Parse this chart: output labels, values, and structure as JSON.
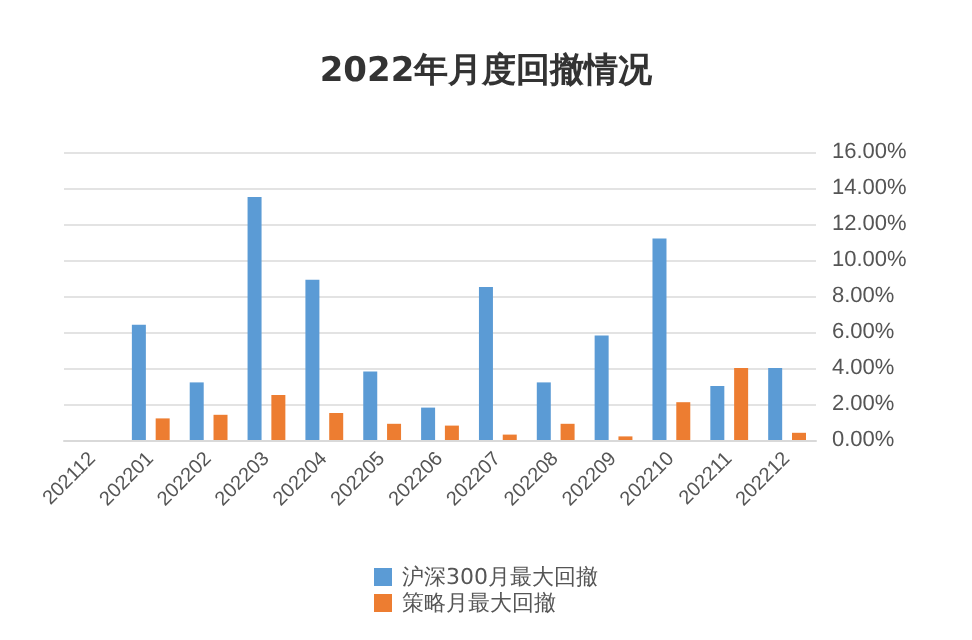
{
  "chart_data": {
    "type": "bar",
    "title": "2022年月度回撤情况",
    "categories": [
      "202112",
      "202201",
      "202202",
      "202203",
      "202204",
      "202205",
      "202206",
      "202207",
      "202208",
      "202209",
      "202210",
      "202211",
      "202212"
    ],
    "series": [
      {
        "name": "沪深300月最大回撤",
        "color": "#5b9bd5",
        "values": [
          null,
          6.4,
          3.2,
          13.5,
          8.9,
          3.8,
          1.8,
          8.5,
          3.2,
          5.8,
          11.2,
          3.0,
          4.0
        ]
      },
      {
        "name": "策略月最大回撤",
        "color": "#ed7d31",
        "values": [
          null,
          1.2,
          1.4,
          2.5,
          1.5,
          0.9,
          0.8,
          0.3,
          0.9,
          0.2,
          2.1,
          4.0,
          0.4
        ]
      }
    ],
    "ylim": [
      0,
      16
    ],
    "yticks": [
      {
        "value": 0,
        "label": "0.00%"
      },
      {
        "value": 2,
        "label": "2.00%"
      },
      {
        "value": 4,
        "label": "4.00%"
      },
      {
        "value": 6,
        "label": "6.00%"
      },
      {
        "value": 8,
        "label": "8.00%"
      },
      {
        "value": 10,
        "label": "10.00%"
      },
      {
        "value": 12,
        "label": "12.00%"
      },
      {
        "value": 14,
        "label": "14.00%"
      },
      {
        "value": 16,
        "label": "16.00%"
      }
    ],
    "grid": "y",
    "legend": "bottom"
  }
}
